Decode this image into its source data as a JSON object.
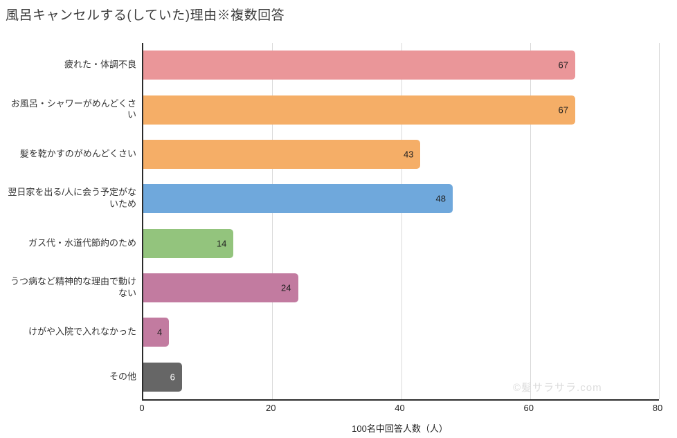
{
  "title": "風呂キャンセルする(していた)理由※複数回答",
  "watermark": "©髪サラサラ.com",
  "chart_data": {
    "type": "bar",
    "orientation": "horizontal",
    "title": "風呂キャンセルする(していた)理由※複数回答",
    "categories": [
      "疲れた・体調不良",
      "お風呂・シャワーがめんどくさい",
      "髪を乾かすのがめんどくさい",
      "翌日家を出る/人に会う予定がないため",
      "ガス代・水道代節約のため",
      "うつ病など精神的な理由で動けない",
      "けがや入院で入れなかった",
      "その他"
    ],
    "values": [
      67,
      67,
      43,
      48,
      14,
      24,
      4,
      6
    ],
    "bar_colors": [
      "#ea9699",
      "#f5ae67",
      "#f5ae67",
      "#6fa8dc",
      "#93c47d",
      "#c27ba0",
      "#c27ba0",
      "#666666"
    ],
    "value_label_colors": [
      "#1f1f1f",
      "#1f1f1f",
      "#1f1f1f",
      "#1f1f1f",
      "#1f1f1f",
      "#1f1f1f",
      "#1f1f1f",
      "#ffffff"
    ],
    "xlabel": "100名中回答人数（人）",
    "xticks": [
      0,
      20,
      40,
      60,
      80
    ],
    "xlim": [
      0,
      80
    ],
    "grid": true,
    "legend": false,
    "colors": {
      "gridline": "#d9d9d9",
      "axis_line": "#2b2b2b",
      "title_text": "#3c3c3c",
      "label_text": "#333333",
      "watermark_text": "#dcdcdc"
    }
  }
}
